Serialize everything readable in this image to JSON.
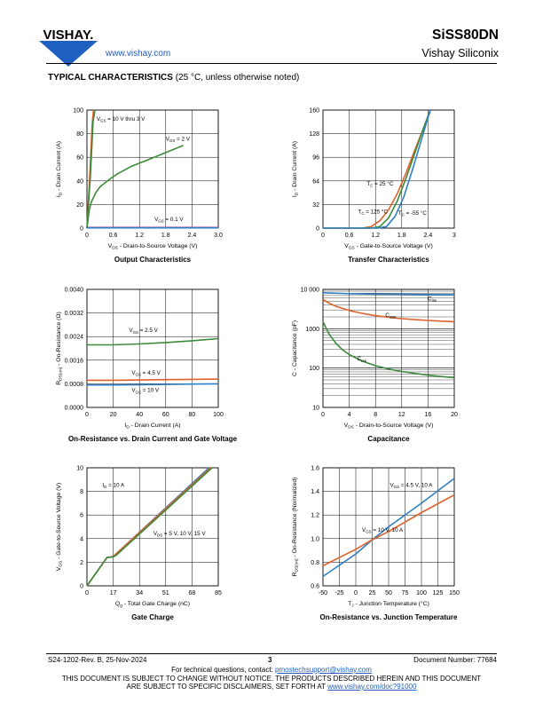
{
  "header": {
    "logo_text": "VISHAY.",
    "website": "www.vishay.com",
    "part_number": "SiSS80DN",
    "company": "Vishay Siliconix",
    "section_title": "TYPICAL CHARACTERISTICS",
    "section_note": "(25 °C, unless otherwise noted)"
  },
  "footer": {
    "revision": "S24-1202-Rev. B, 25-Nov-2024",
    "page": "3",
    "doc_number": "Document Number: 77684",
    "contact_prefix": "For technical questions, contact: ",
    "contact_email": "pmostechsupport@vishay.com",
    "notice_line1": "THIS DOCUMENT IS SUBJECT TO CHANGE WITHOUT NOTICE. THE PRODUCTS DESCRIBED HEREIN AND THIS DOCUMENT",
    "notice_line2_prefix": "ARE SUBJECT TO SPECIFIC DISCLAIMERS, SET FORTH AT ",
    "notice_link": "www.vishay.com/doc?91000"
  },
  "colors": {
    "green": "#3d8a3a",
    "orange": "#e0612a",
    "blue": "#2f7fc4",
    "magenta": "#c0269c",
    "cyan": "#35b0b8"
  },
  "chart_data": [
    {
      "type": "line",
      "caption": "Output Characteristics",
      "xlabel_main": "V",
      "xlabel_sub": "DS",
      "xlabel_rest": " - Drain-to-Source Voltage (V)",
      "ylabel_main": "I",
      "ylabel_sub": "D",
      "ylabel_rest": " - Drain Current (A)",
      "xlim": [
        0,
        3
      ],
      "ylim": [
        0,
        100
      ],
      "xticks": [
        0,
        0.6,
        1.2,
        1.8,
        2.4,
        3.0
      ],
      "xtick_labels": [
        "0",
        "0.6",
        "1.2",
        "1.8",
        "2.4",
        "3.0"
      ],
      "yticks": [
        0,
        20,
        40,
        60,
        80,
        100
      ],
      "ytick_labels": [
        "0",
        "20",
        "40",
        "60",
        "80",
        "100"
      ],
      "series": [
        {
          "color": "orange",
          "x": [
            0,
            0.06,
            0.12,
            0.15
          ],
          "y": [
            0,
            42,
            88,
            100
          ]
        },
        {
          "color": "green",
          "x": [
            0,
            0.08,
            0.14,
            0.18
          ],
          "y": [
            0,
            45,
            90,
            100
          ]
        },
        {
          "color": "green",
          "x": [
            0,
            0.05,
            0.1,
            0.2,
            0.3,
            0.5,
            0.7,
            1.0,
            1.4,
            1.8,
            2.2
          ],
          "y": [
            0,
            15,
            22,
            30,
            35,
            41,
            46,
            52,
            58,
            64,
            70
          ]
        },
        {
          "color": "magenta",
          "x": [
            0,
            3
          ],
          "y": [
            0.5,
            0.5
          ]
        },
        {
          "color": "blue",
          "x": [
            0,
            3
          ],
          "y": [
            0.2,
            0.2
          ]
        }
      ],
      "annotations": [
        {
          "main": "V",
          "sub": "GS",
          "rest": " = 10 V thru 3 V",
          "x": 0.22,
          "y": 91
        },
        {
          "main": "V",
          "sub": "GS",
          "rest": " = 2 V",
          "x": 2.35,
          "y": 74
        },
        {
          "main": "V",
          "sub": "GS",
          "rest": " = 0.1 V",
          "x": 2.2,
          "y": 6
        }
      ]
    },
    {
      "type": "line",
      "caption": "Transfer Characteristics",
      "xlabel_main": "V",
      "xlabel_sub": "GS",
      "xlabel_rest": " - Gate-to-Source Voltage (V)",
      "ylabel_main": "I",
      "ylabel_sub": "D",
      "ylabel_rest": " - Drain Current (A)",
      "xlim": [
        0,
        3
      ],
      "ylim": [
        0,
        160
      ],
      "xticks": [
        0,
        0.6,
        1.2,
        1.8,
        2.4,
        3
      ],
      "xtick_labels": [
        "0",
        "0.6",
        "1.2",
        "1.8",
        "2.4",
        "3"
      ],
      "yticks": [
        0,
        32,
        64,
        96,
        128,
        160
      ],
      "ytick_labels": [
        "0",
        "32",
        "64",
        "96",
        "128",
        "160"
      ],
      "series": [
        {
          "name": "TC = 125 °C",
          "color": "orange",
          "x": [
            0,
            0.9,
            1.1,
            1.3,
            1.5,
            1.7,
            1.9,
            2.1,
            2.3,
            2.45
          ],
          "y": [
            0,
            0,
            2,
            10,
            25,
            47,
            75,
            106,
            136,
            158
          ]
        },
        {
          "name": "TC = 25 °C",
          "color": "green",
          "x": [
            0,
            1.1,
            1.3,
            1.5,
            1.7,
            1.9,
            2.1,
            2.3,
            2.45
          ],
          "y": [
            0,
            0,
            2,
            14,
            37,
            68,
            102,
            136,
            160
          ]
        },
        {
          "name": "TC = -55 °C",
          "color": "blue",
          "x": [
            0,
            1.25,
            1.45,
            1.65,
            1.85,
            2.05,
            2.25,
            2.45
          ],
          "y": [
            0,
            0,
            2,
            16,
            43,
            80,
            120,
            160
          ]
        }
      ],
      "annotations": [
        {
          "main": "T",
          "sub": "C",
          "rest": " = 25 °C",
          "x": 1.0,
          "y": 58
        },
        {
          "main": "T",
          "sub": "C",
          "rest": " = 125 °C",
          "x": 0.8,
          "y": 20
        },
        {
          "main": "T",
          "sub": "C",
          "rest": " = -55 °C",
          "x": 1.72,
          "y": 18
        }
      ]
    },
    {
      "type": "line",
      "caption": "On-Resistance vs. Drain Current and Gate Voltage",
      "xlabel_main": "I",
      "xlabel_sub": "D",
      "xlabel_rest": " - Drain Current (A)",
      "ylabel_main": "R",
      "ylabel_sub": "DS(on)",
      "ylabel_rest": " - On-Resistance (Ω)",
      "xlim": [
        0,
        100
      ],
      "ylim": [
        0,
        0.004
      ],
      "xticks": [
        0,
        20,
        40,
        60,
        80,
        100
      ],
      "xtick_labels": [
        "0",
        "20",
        "40",
        "60",
        "80",
        "100"
      ],
      "yticks": [
        0,
        0.0008,
        0.0016,
        0.0024,
        0.0032,
        0.004
      ],
      "ytick_labels": [
        "0.0000",
        "0.0008",
        "0.0016",
        "0.0024",
        "0.0032",
        "0.0040"
      ],
      "series": [
        {
          "color": "green",
          "x": [
            0,
            20,
            40,
            60,
            80,
            100
          ],
          "y": [
            0.00212,
            0.00212,
            0.00215,
            0.0022,
            0.00226,
            0.00233
          ]
        },
        {
          "color": "orange",
          "x": [
            0,
            20,
            40,
            60,
            80,
            100
          ],
          "y": [
            0.00092,
            0.00092,
            0.00093,
            0.00094,
            0.00095,
            0.00096
          ]
        },
        {
          "color": "blue",
          "x": [
            0,
            20,
            40,
            60,
            80,
            100
          ],
          "y": [
            0.00076,
            0.00076,
            0.00077,
            0.00078,
            0.00079,
            0.0008
          ]
        }
      ],
      "annotations": [
        {
          "main": "V",
          "sub": "GS",
          "rest": " = 2.5 V",
          "x": 32,
          "y": 0.00255
        },
        {
          "main": "V",
          "sub": "GS",
          "rest": " = 4.5 V",
          "x": 34,
          "y": 0.00112
        },
        {
          "main": "V",
          "sub": "GS",
          "rest": " = 10 V",
          "x": 34,
          "y": 0.00052
        }
      ]
    },
    {
      "type": "line",
      "caption": "Capacitance",
      "yscale": "log",
      "xlabel_main": "V",
      "xlabel_sub": "DS",
      "xlabel_rest": " - Drain-to-Source Voltage (V)",
      "ylabel_main": "C",
      "ylabel_sub": "",
      "ylabel_rest": " - Capacitance (pF)",
      "xlim": [
        0,
        20
      ],
      "ylim": [
        10,
        10000
      ],
      "xticks": [
        0,
        4,
        8,
        12,
        16,
        20
      ],
      "xtick_labels": [
        "0",
        "4",
        "8",
        "12",
        "16",
        "20"
      ],
      "yticks": [
        10,
        100,
        1000,
        10000
      ],
      "ytick_labels": [
        "10",
        "100",
        "1000",
        "10 000"
      ],
      "series": [
        {
          "name": "Ciss",
          "color": "blue",
          "x": [
            0,
            4,
            8,
            12,
            16,
            20
          ],
          "y": [
            8200,
            7800,
            7600,
            7500,
            7400,
            7300
          ]
        },
        {
          "name": "Coss",
          "color": "orange",
          "x": [
            0,
            1,
            2,
            4,
            6,
            8,
            10,
            12,
            14,
            16,
            18,
            20
          ],
          "y": [
            5500,
            4400,
            3700,
            2900,
            2450,
            2150,
            1950,
            1800,
            1700,
            1620,
            1560,
            1500
          ]
        },
        {
          "name": "Crss",
          "color": "green",
          "x": [
            0,
            1,
            2,
            3,
            4,
            6,
            8,
            10,
            12,
            14,
            16,
            18,
            20
          ],
          "y": [
            1500,
            700,
            420,
            290,
            220,
            150,
            115,
            95,
            82,
            73,
            66,
            61,
            57
          ]
        }
      ],
      "annotations": [
        {
          "main": "C",
          "sub": "iss",
          "rest": "",
          "x": 17.3,
          "y": 5200
        },
        {
          "main": "C",
          "sub": "oss",
          "rest": "",
          "x": 9.5,
          "y": 2000
        },
        {
          "main": "C",
          "sub": "rss",
          "rest": "",
          "x": 5.2,
          "y": 155
        }
      ]
    },
    {
      "type": "line",
      "caption": "Gate Charge",
      "xlabel_main": "Q",
      "xlabel_sub": "g",
      "xlabel_rest": " - Total Gate Charge (nC)",
      "ylabel_main": "V",
      "ylabel_sub": "GS",
      "ylabel_rest": " - Gate-to-Source Voltage (V)",
      "xlim": [
        0,
        85
      ],
      "ylim": [
        0,
        10
      ],
      "xticks": [
        0,
        17,
        34,
        51,
        68,
        85
      ],
      "xtick_labels": [
        "0",
        "17",
        "34",
        "51",
        "68",
        "85"
      ],
      "yticks": [
        0,
        2,
        4,
        6,
        8,
        10
      ],
      "ytick_labels": [
        "0",
        "2",
        "4",
        "6",
        "8",
        "10"
      ],
      "series": [
        {
          "color": "blue",
          "x": [
            0,
            13,
            16,
            18,
            79
          ],
          "y": [
            0,
            2.4,
            2.45,
            2.6,
            10
          ]
        },
        {
          "color": "orange",
          "x": [
            0,
            13,
            16,
            18,
            80
          ],
          "y": [
            0,
            2.4,
            2.45,
            2.6,
            10
          ]
        },
        {
          "color": "green",
          "x": [
            0,
            13,
            17,
            19,
            81
          ],
          "y": [
            0,
            2.4,
            2.45,
            2.6,
            10
          ]
        }
      ],
      "annotations": [
        {
          "main": "I",
          "sub": "D",
          "rest": " = 10 A",
          "x": 10,
          "y": 8.4
        },
        {
          "main": "V",
          "sub": "DS",
          "rest": " = 5 V, 10 V, 15  V",
          "x": 43,
          "y": 4.3
        }
      ]
    },
    {
      "type": "line",
      "caption": "On-Resistance vs. Junction Temperature",
      "xlabel_main": "T",
      "xlabel_sub": "J",
      "xlabel_rest": " - Junction Temperature (°C)",
      "ylabel_main": "R",
      "ylabel_sub": "DS(on)",
      "ylabel_rest": " - On-Resistance (Normalized)",
      "xlim": [
        -50,
        150
      ],
      "ylim": [
        0.6,
        1.6
      ],
      "xticks": [
        -50,
        -25,
        0,
        25,
        50,
        75,
        100,
        125,
        150
      ],
      "xtick_labels": [
        "-50",
        "-25",
        "0",
        "25",
        "50",
        "75",
        "100",
        "125",
        "150"
      ],
      "yticks": [
        0.6,
        0.8,
        1.0,
        1.2,
        1.4,
        1.6
      ],
      "ytick_labels": [
        "0.6",
        "0.8",
        "1.0",
        "1.2",
        "1.4",
        "1.6"
      ],
      "series": [
        {
          "name": "VGS = 4.5 V, 10 A",
          "color": "blue",
          "x": [
            -50,
            0,
            25,
            50,
            100,
            150
          ],
          "y": [
            0.68,
            0.87,
            0.99,
            1.1,
            1.3,
            1.51
          ]
        },
        {
          "name": "VGS = 10 V, 10 A",
          "color": "orange",
          "x": [
            -50,
            0,
            25,
            50,
            100,
            150
          ],
          "y": [
            0.77,
            0.91,
            0.99,
            1.06,
            1.22,
            1.37
          ]
        }
      ],
      "annotations": [
        {
          "main": "V",
          "sub": "GS",
          "rest": " = 4.5 V, 10 A",
          "x": 52,
          "y": 1.44
        },
        {
          "main": "V",
          "sub": "GS",
          "rest": " = 10 V, 10 A",
          "x": 72,
          "y": 1.06
        }
      ]
    }
  ]
}
